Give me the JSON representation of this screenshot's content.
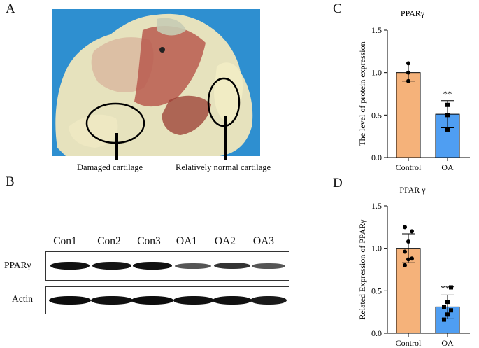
{
  "panels": {
    "a": {
      "letter": "A",
      "labels": [
        "Damaged cartilage",
        "Relatively normal cartilage"
      ]
    },
    "b": {
      "letter": "B",
      "lanes": [
        "Con1",
        "Con2",
        "Con3",
        "OA1",
        "OA2",
        "OA3"
      ],
      "rows": [
        "PPARγ",
        "Actin"
      ]
    },
    "c": {
      "letter": "C"
    },
    "d": {
      "letter": "D"
    }
  },
  "colors": {
    "control": "#f5b27a",
    "oa": "#4f9ef2",
    "photo_bg": "#2e8fd0"
  },
  "chart_data": [
    {
      "type": "bar",
      "title": "PPARγ",
      "ylabel": "The level of protein expression",
      "xlabel": "",
      "categories": [
        "Control",
        "OA"
      ],
      "values": [
        1.0,
        0.51
      ],
      "errors": [
        0.1,
        0.16
      ],
      "points": [
        [
          0.9,
          1.0,
          1.11
        ],
        [
          0.33,
          0.5,
          0.62
        ]
      ],
      "markers": [
        "circle",
        "square"
      ],
      "significance": [
        "",
        "**"
      ],
      "ylim": [
        0,
        1.5
      ],
      "yticks": [
        "0.0",
        "0.5",
        "1.0",
        "1.5"
      ]
    },
    {
      "type": "bar",
      "title": "PPAR γ",
      "ylabel": "Related Expression of PPARγ",
      "xlabel": "",
      "categories": [
        "Control",
        "OA"
      ],
      "values": [
        1.0,
        0.31
      ],
      "errors": [
        0.17,
        0.14
      ],
      "points": [
        [
          0.8,
          0.87,
          0.88,
          0.96,
          1.08,
          1.2,
          1.25
        ],
        [
          0.16,
          0.22,
          0.27,
          0.31,
          0.37,
          0.54
        ]
      ],
      "markers": [
        "circle",
        "square"
      ],
      "significance": [
        "",
        "***"
      ],
      "ylim": [
        0,
        1.5
      ],
      "yticks": [
        "0.0",
        "0.5",
        "1.0",
        "1.5"
      ]
    }
  ]
}
